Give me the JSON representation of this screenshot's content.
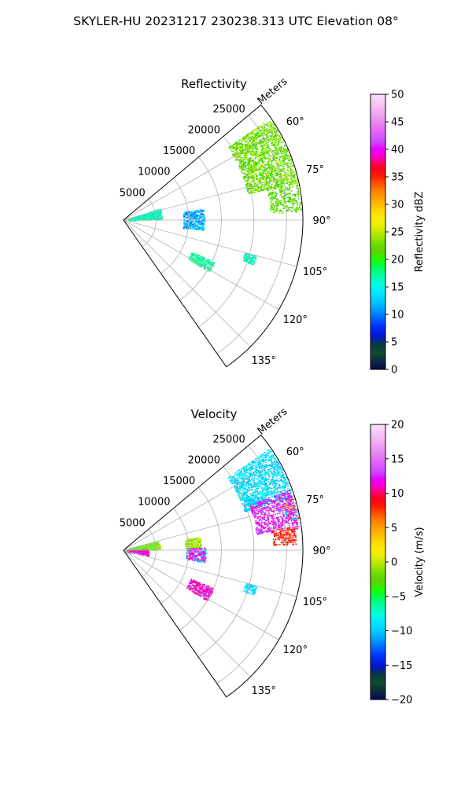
{
  "suptitle": "SKYLER-HU  20231217  230238.313 UTC Elevation 08°",
  "chart_data": [
    {
      "type": "polar-sector",
      "title": "Reflectivity",
      "radial_label": "Meters",
      "theta_range_deg": [
        50,
        145
      ],
      "r_max": 27500,
      "radial_ticks": [
        5000,
        10000,
        15000,
        20000,
        25000
      ],
      "radial_tick_labels": [
        "5000",
        "10000",
        "15000",
        "20000",
        "25000"
      ],
      "angle_ticks": [
        60,
        75,
        90,
        105,
        120,
        135
      ],
      "angle_tick_labels": [
        "60°",
        "75°",
        "90°",
        "105°",
        "120°",
        "135°"
      ],
      "grid": true,
      "colorbar": {
        "label": "Reflectivity dBZ",
        "min": 0,
        "max": 50,
        "ticks": [
          0,
          5,
          10,
          15,
          20,
          25,
          30,
          35,
          40,
          45,
          50
        ],
        "tick_labels": [
          "0",
          "5",
          "10",
          "15",
          "20",
          "25",
          "30",
          "35",
          "40",
          "45",
          "50"
        ],
        "stops": [
          [
            0,
            "#020a4a"
          ],
          [
            0.03,
            "#0c2a40"
          ],
          [
            0.06,
            "#114a2e"
          ],
          [
            0.09,
            "#0a3a40"
          ],
          [
            0.12,
            "#0015cc"
          ],
          [
            0.16,
            "#0033ff"
          ],
          [
            0.19,
            "#006dff"
          ],
          [
            0.22,
            "#00a0ff"
          ],
          [
            0.25,
            "#00ccff"
          ],
          [
            0.28,
            "#00e8ff"
          ],
          [
            0.31,
            "#00ffe0"
          ],
          [
            0.34,
            "#00ffa5"
          ],
          [
            0.37,
            "#00ff5a"
          ],
          [
            0.4,
            "#1cfe00"
          ],
          [
            0.43,
            "#5fd100"
          ],
          [
            0.46,
            "#6fe000"
          ],
          [
            0.48,
            "#9ee400"
          ],
          [
            0.52,
            "#e4f000"
          ],
          [
            0.55,
            "#ffeb00"
          ],
          [
            0.58,
            "#ffd200"
          ],
          [
            0.61,
            "#ffae00"
          ],
          [
            0.64,
            "#ff8c00"
          ],
          [
            0.67,
            "#ff5c00"
          ],
          [
            0.7,
            "#ff2000"
          ],
          [
            0.73,
            "#ff0018"
          ],
          [
            0.75,
            "#ff0060"
          ],
          [
            0.77,
            "#ff00c0"
          ],
          [
            0.8,
            "#e900ff"
          ],
          [
            0.83,
            "#c94dff"
          ],
          [
            0.86,
            "#e35fff"
          ],
          [
            0.9,
            "#e88aec"
          ],
          [
            0.94,
            "#f2b0f2"
          ],
          [
            1.0,
            "#fde0fd"
          ]
        ]
      },
      "echoes": [
        {
          "theta_deg": [
            55,
            78
          ],
          "r_m": [
            19500,
            27200
          ],
          "value": 19,
          "colors": [
            "#52d800",
            "#7fe500",
            "#3cd400",
            "#a5ec00"
          ],
          "density": 0.6
        },
        {
          "theta_deg": [
            77,
            87
          ],
          "r_m": [
            22500,
            27200
          ],
          "value": 19,
          "colors": [
            "#52d800",
            "#3cd400",
            "#7fe500"
          ],
          "density": 0.4
        },
        {
          "theta_deg": [
            72,
            88
          ],
          "r_m": [
            800,
            5800
          ],
          "value": 13,
          "colors": [
            "#00f0c0",
            "#00ffa5",
            "#00e0ff",
            "#40ff80"
          ],
          "density": 0.5
        },
        {
          "theta_deg": [
            82,
            97
          ],
          "r_m": [
            9200,
            12300
          ],
          "value": 10,
          "colors": [
            "#00ccff",
            "#00b8ff",
            "#00e8ff",
            "#2060ff"
          ],
          "density": 0.5
        },
        {
          "theta_deg": [
            115,
            121
          ],
          "r_m": [
            11500,
            15200
          ],
          "value": 14,
          "colors": [
            "#00ffa5",
            "#00f0c0",
            "#40ff80"
          ],
          "density": 0.6
        },
        {
          "theta_deg": [
            105,
            109
          ],
          "r_m": [
            19200,
            21000
          ],
          "value": 14,
          "colors": [
            "#00ffa5",
            "#00e8c0"
          ],
          "density": 0.7
        }
      ]
    },
    {
      "type": "polar-sector",
      "title": "Velocity",
      "radial_label": "Meters",
      "theta_range_deg": [
        50,
        145
      ],
      "r_max": 27500,
      "radial_ticks": [
        5000,
        10000,
        15000,
        20000,
        25000
      ],
      "radial_tick_labels": [
        "5000",
        "10000",
        "15000",
        "20000",
        "25000"
      ],
      "angle_ticks": [
        60,
        75,
        90,
        105,
        120,
        135
      ],
      "angle_tick_labels": [
        "60°",
        "75°",
        "90°",
        "105°",
        "120°",
        "135°"
      ],
      "grid": true,
      "colorbar": {
        "label": "Velocity (m/s)",
        "min": -20,
        "max": 20,
        "ticks": [
          -20,
          -15,
          -10,
          -5,
          0,
          5,
          10,
          15,
          20
        ],
        "tick_labels": [
          "−20",
          "−15",
          "−10",
          "−5",
          "0",
          "5",
          "10",
          "15",
          "20"
        ],
        "stops": [
          [
            0,
            "#020a4a"
          ],
          [
            0.03,
            "#0c2a40"
          ],
          [
            0.06,
            "#114a2e"
          ],
          [
            0.09,
            "#0a3a40"
          ],
          [
            0.12,
            "#0015cc"
          ],
          [
            0.16,
            "#0033ff"
          ],
          [
            0.19,
            "#006dff"
          ],
          [
            0.22,
            "#00a0ff"
          ],
          [
            0.25,
            "#00ccff"
          ],
          [
            0.28,
            "#00e8ff"
          ],
          [
            0.31,
            "#00ffe0"
          ],
          [
            0.34,
            "#00ffa5"
          ],
          [
            0.37,
            "#00ff5a"
          ],
          [
            0.4,
            "#1cfe00"
          ],
          [
            0.43,
            "#5fd100"
          ],
          [
            0.46,
            "#6fe000"
          ],
          [
            0.48,
            "#9ee400"
          ],
          [
            0.52,
            "#e4f000"
          ],
          [
            0.55,
            "#ffeb00"
          ],
          [
            0.58,
            "#ffd200"
          ],
          [
            0.61,
            "#ffae00"
          ],
          [
            0.64,
            "#ff8c00"
          ],
          [
            0.67,
            "#ff5c00"
          ],
          [
            0.7,
            "#ff2000"
          ],
          [
            0.73,
            "#ff0018"
          ],
          [
            0.75,
            "#ff0060"
          ],
          [
            0.77,
            "#ff00c0"
          ],
          [
            0.8,
            "#e900ff"
          ],
          [
            0.83,
            "#c94dff"
          ],
          [
            0.86,
            "#e35fff"
          ],
          [
            0.9,
            "#e88aec"
          ],
          [
            0.94,
            "#f2b0f2"
          ],
          [
            1.0,
            "#fde0fd"
          ]
        ]
      },
      "echoes": [
        {
          "theta_deg": [
            55,
            72
          ],
          "r_m": [
            19500,
            27200
          ],
          "value": -11,
          "colors": [
            "#00e8ff",
            "#00ccff",
            "#00ffe0",
            "#00b8ff"
          ],
          "density": 0.6
        },
        {
          "theta_deg": [
            70,
            83
          ],
          "r_m": [
            20500,
            27000
          ],
          "value": 13,
          "colors": [
            "#c94dff",
            "#e900ff",
            "#b040ff",
            "#ff00c0"
          ],
          "density": 0.55
        },
        {
          "theta_deg": [
            82,
            88
          ],
          "r_m": [
            23000,
            26500
          ],
          "value": 10,
          "colors": [
            "#ff2000",
            "#ff0018",
            "#ff5c00"
          ],
          "density": 0.55
        },
        {
          "theta_deg": [
            73,
            80
          ],
          "r_m": [
            25500,
            27300
          ],
          "value": 5,
          "colors": [
            "#ff8c00",
            "#00ccff",
            "#ff00c0"
          ],
          "density": 0.5
        },
        {
          "theta_deg": [
            75,
            88
          ],
          "r_m": [
            800,
            5500
          ],
          "value": -4,
          "colors": [
            "#9ee400",
            "#6fe000",
            "#00ffa5",
            "#c8f000"
          ],
          "density": 0.5
        },
        {
          "theta_deg": [
            88,
            102
          ],
          "r_m": [
            500,
            3800
          ],
          "value": 14,
          "colors": [
            "#ff00c0",
            "#e900ff",
            "#ff0060",
            "#c94dff"
          ],
          "density": 0.55
        },
        {
          "theta_deg": [
            80,
            88
          ],
          "r_m": [
            9500,
            11800
          ],
          "value": -4,
          "colors": [
            "#9ee400",
            "#6fe000",
            "#c8f000"
          ],
          "density": 0.5
        },
        {
          "theta_deg": [
            88,
            98
          ],
          "r_m": [
            9600,
            12500
          ],
          "value": 14,
          "colors": [
            "#e900ff",
            "#c94dff",
            "#00e8ff",
            "#ff00c0"
          ],
          "density": 0.5
        },
        {
          "theta_deg": [
            113,
            121
          ],
          "r_m": [
            11200,
            15000
          ],
          "value": 12,
          "colors": [
            "#ff0060",
            "#ff00c0",
            "#e900ff",
            "#c94dff"
          ],
          "density": 0.6
        },
        {
          "theta_deg": [
            105,
            109
          ],
          "r_m": [
            19200,
            21000
          ],
          "value": -12,
          "colors": [
            "#00ccff",
            "#00e8ff"
          ],
          "density": 0.7
        }
      ]
    }
  ]
}
